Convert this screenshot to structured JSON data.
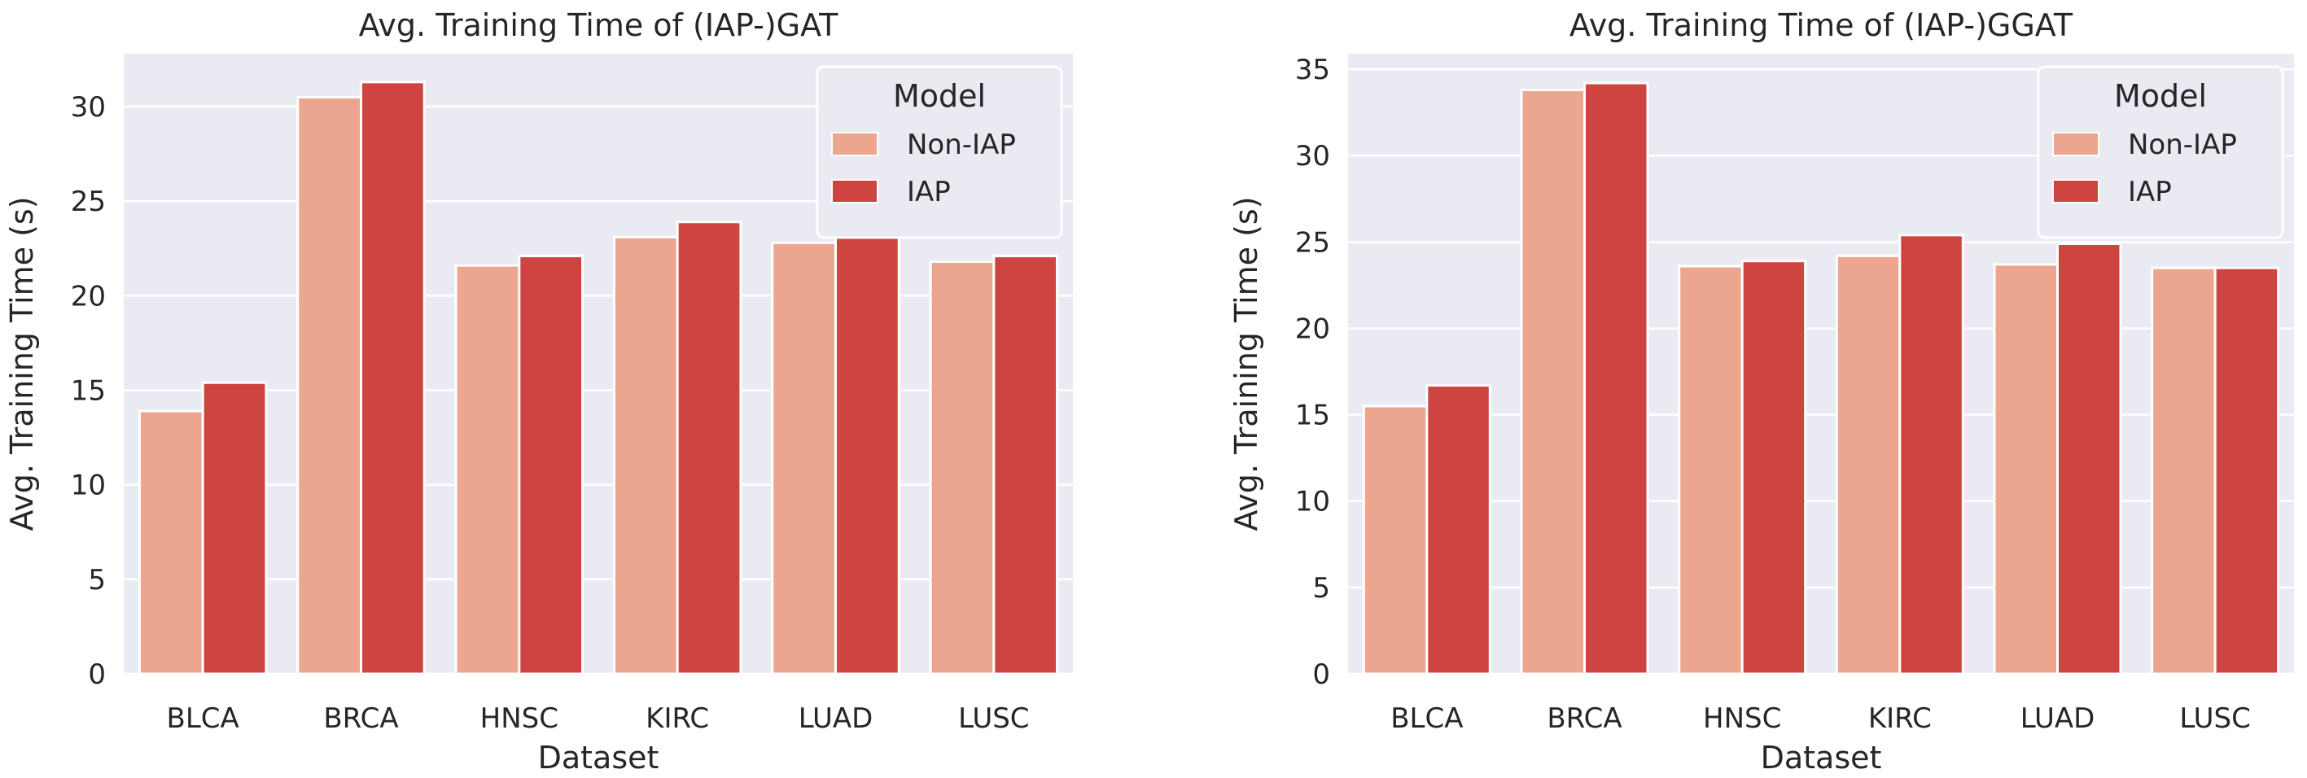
{
  "figure": {
    "name": "training-time-comparison"
  },
  "chart_data": [
    {
      "type": "bar",
      "title": "Avg. Training Time of (IAP-)GAT",
      "xlabel": "Dataset",
      "ylabel": "Avg. Training Time (s)",
      "categories": [
        "BLCA",
        "BRCA",
        "HNSC",
        "KIRC",
        "LUAD",
        "LUSC"
      ],
      "series": [
        {
          "name": "Non-IAP",
          "color": "#eca68f",
          "values": [
            13.9,
            30.5,
            21.6,
            23.1,
            22.8,
            21.8
          ]
        },
        {
          "name": "IAP",
          "color": "#cd4440",
          "values": [
            15.4,
            31.3,
            22.1,
            23.9,
            23.1,
            22.1
          ]
        }
      ],
      "ylim": [
        0,
        32.8
      ],
      "yticks": [
        0,
        5,
        10,
        15,
        20,
        25,
        30
      ],
      "grid": true,
      "legend": {
        "title": "Model",
        "position": "top-right"
      }
    },
    {
      "type": "bar",
      "title": "Avg. Training Time of (IAP-)GGAT",
      "xlabel": "Dataset",
      "ylabel": "Avg. Training Time (s)",
      "categories": [
        "BLCA",
        "BRCA",
        "HNSC",
        "KIRC",
        "LUAD",
        "LUSC"
      ],
      "series": [
        {
          "name": "Non-IAP",
          "color": "#eca68f",
          "values": [
            15.5,
            33.8,
            23.6,
            24.2,
            23.7,
            23.5
          ]
        },
        {
          "name": "IAP",
          "color": "#cd4440",
          "values": [
            16.7,
            34.2,
            23.9,
            25.4,
            24.9,
            23.5
          ]
        }
      ],
      "ylim": [
        0,
        35.9
      ],
      "yticks": [
        0,
        5,
        10,
        15,
        20,
        25,
        30,
        35
      ],
      "grid": true,
      "legend": {
        "title": "Model",
        "position": "top-right"
      }
    }
  ]
}
